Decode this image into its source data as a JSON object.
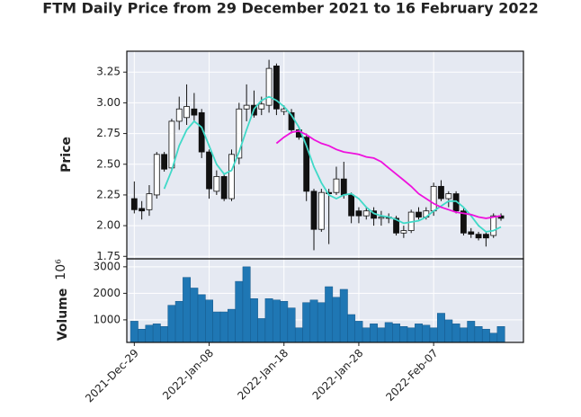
{
  "chart_data": {
    "type": "candlestick",
    "title": "FTM Daily Price from 29 December 2021 to 16 February 2022",
    "ylabel": "Price",
    "volume_label": "Volume",
    "volume_scale": "10⁶",
    "x": [
      "2021-12-29",
      "2021-12-30",
      "2021-12-31",
      "2022-01-01",
      "2022-01-02",
      "2022-01-03",
      "2022-01-04",
      "2022-01-05",
      "2022-01-06",
      "2022-01-07",
      "2022-01-08",
      "2022-01-09",
      "2022-01-10",
      "2022-01-11",
      "2022-01-12",
      "2022-01-13",
      "2022-01-14",
      "2022-01-15",
      "2022-01-16",
      "2022-01-17",
      "2022-01-18",
      "2022-01-19",
      "2022-01-20",
      "2022-01-21",
      "2022-01-22",
      "2022-01-23",
      "2022-01-24",
      "2022-01-25",
      "2022-01-26",
      "2022-01-27",
      "2022-01-28",
      "2022-01-29",
      "2022-01-30",
      "2022-01-31",
      "2022-02-01",
      "2022-02-02",
      "2022-02-03",
      "2022-02-04",
      "2022-02-05",
      "2022-02-06",
      "2022-02-07",
      "2022-02-08",
      "2022-02-09",
      "2022-02-10",
      "2022-02-11",
      "2022-02-12",
      "2022-02-13",
      "2022-02-14",
      "2022-02-15",
      "2022-02-16"
    ],
    "open": [
      2.22,
      2.14,
      2.13,
      2.25,
      2.58,
      2.47,
      2.85,
      2.88,
      2.95,
      2.92,
      2.6,
      2.28,
      2.4,
      2.22,
      2.55,
      2.95,
      2.98,
      2.95,
      2.98,
      3.3,
      2.93,
      2.92,
      2.78,
      2.72,
      2.28,
      1.97,
      2.27,
      2.27,
      2.38,
      2.25,
      2.12,
      2.08,
      2.12,
      2.06,
      2.07,
      2.06,
      1.94,
      1.96,
      2.11,
      2.07,
      2.12,
      2.32,
      2.22,
      2.26,
      2.12,
      1.95,
      1.93,
      1.93,
      1.92,
      2.08
    ],
    "high": [
      2.36,
      2.2,
      2.33,
      2.6,
      2.6,
      2.87,
      3.05,
      3.15,
      3.08,
      2.95,
      2.62,
      2.45,
      2.42,
      2.62,
      3.0,
      3.15,
      3.1,
      3.05,
      3.35,
      3.32,
      2.98,
      2.95,
      2.8,
      2.75,
      2.3,
      2.3,
      2.3,
      2.48,
      2.52,
      2.27,
      2.15,
      2.15,
      2.15,
      2.12,
      2.1,
      2.08,
      2.0,
      2.13,
      2.15,
      2.15,
      2.35,
      2.37,
      2.28,
      2.28,
      2.14,
      1.98,
      1.95,
      1.95,
      2.1,
      2.1
    ],
    "low": [
      2.1,
      2.05,
      2.08,
      2.22,
      2.44,
      2.45,
      2.78,
      2.82,
      2.85,
      2.55,
      2.22,
      2.25,
      2.2,
      2.2,
      2.5,
      2.85,
      2.88,
      2.9,
      2.92,
      2.9,
      2.9,
      2.75,
      2.7,
      2.2,
      1.8,
      1.95,
      1.85,
      2.25,
      2.22,
      2.02,
      2.02,
      2.05,
      2.0,
      2.0,
      2.02,
      1.92,
      1.9,
      1.94,
      2.05,
      2.05,
      2.08,
      2.2,
      2.15,
      2.1,
      1.92,
      1.9,
      1.88,
      1.83,
      1.9,
      2.04
    ],
    "close": [
      2.13,
      2.12,
      2.26,
      2.58,
      2.46,
      2.85,
      2.95,
      2.97,
      2.9,
      2.6,
      2.3,
      2.4,
      2.22,
      2.58,
      2.95,
      2.98,
      2.9,
      2.99,
      3.28,
      2.95,
      2.95,
      2.78,
      2.72,
      2.28,
      1.97,
      2.27,
      2.26,
      2.38,
      2.25,
      2.08,
      2.08,
      2.12,
      2.06,
      2.07,
      2.06,
      1.94,
      1.96,
      2.11,
      2.07,
      2.12,
      2.32,
      2.22,
      2.26,
      2.12,
      1.94,
      1.93,
      1.9,
      1.9,
      2.08,
      2.06
    ],
    "volume": [
      950,
      650,
      800,
      850,
      750,
      1550,
      1700,
      2600,
      2200,
      1950,
      1750,
      1300,
      1300,
      1400,
      2450,
      3000,
      1800,
      1050,
      1800,
      1750,
      1700,
      1450,
      700,
      1650,
      1750,
      1650,
      2250,
      1850,
      2150,
      1200,
      950,
      700,
      850,
      700,
      900,
      850,
      750,
      700,
      850,
      800,
      700,
      1250,
      1000,
      850,
      700,
      950,
      750,
      650,
      500,
      750
    ],
    "up_color": "#ffffff",
    "down_color": "#111111",
    "volume_color": "#1f77b4",
    "moving_averages": [
      {
        "color": "#40d9c8",
        "values": [
          null,
          null,
          null,
          null,
          2.3,
          2.45,
          2.65,
          2.78,
          2.85,
          2.8,
          2.65,
          2.5,
          2.42,
          2.45,
          2.6,
          2.78,
          2.95,
          3.02,
          3.05,
          3.02,
          2.97,
          2.9,
          2.8,
          2.65,
          2.48,
          2.35,
          2.25,
          2.22,
          2.25,
          2.26,
          2.22,
          2.15,
          2.1,
          2.08,
          2.07,
          2.05,
          2.02,
          2.03,
          2.04,
          2.07,
          2.12,
          2.16,
          2.2,
          2.2,
          2.15,
          2.08,
          2.0,
          1.95,
          1.96,
          1.99
        ]
      },
      {
        "color": "#ee11dd",
        "values": [
          null,
          null,
          null,
          null,
          null,
          null,
          null,
          null,
          null,
          null,
          null,
          null,
          null,
          null,
          null,
          null,
          null,
          null,
          null,
          2.67,
          2.72,
          2.76,
          2.77,
          2.74,
          2.7,
          2.67,
          2.65,
          2.62,
          2.6,
          2.59,
          2.58,
          2.56,
          2.55,
          2.52,
          2.47,
          2.42,
          2.37,
          2.32,
          2.26,
          2.22,
          2.18,
          2.15,
          2.13,
          2.11,
          2.1,
          2.09,
          2.07,
          2.06,
          2.07,
          2.08
        ]
      }
    ],
    "xlim": [
      "2021-12-28",
      "2022-02-19"
    ],
    "xticks": [
      {
        "value": "2021-12-29",
        "label": "2021-Dec-29"
      },
      {
        "value": "2022-01-08",
        "label": "2022-Jan-08"
      },
      {
        "value": "2022-01-18",
        "label": "2022-Jan-18"
      },
      {
        "value": "2022-01-28",
        "label": "2022-Jan-28"
      },
      {
        "value": "2022-02-07",
        "label": "2022-Feb-07"
      }
    ],
    "ylim": [
      1.73,
      3.42
    ],
    "yticks": [
      {
        "value": 1.75,
        "label": "1.75"
      },
      {
        "value": 2.0,
        "label": "2.00"
      },
      {
        "value": 2.25,
        "label": "2.25"
      },
      {
        "value": 2.5,
        "label": "2.50"
      },
      {
        "value": 2.75,
        "label": "2.75"
      },
      {
        "value": 3.0,
        "label": "3.00"
      },
      {
        "value": 3.25,
        "label": "3.25"
      }
    ],
    "volume_ylim": [
      150,
      3300
    ],
    "volume_yticks": [
      1000,
      2000,
      3000
    ],
    "grid": true
  }
}
